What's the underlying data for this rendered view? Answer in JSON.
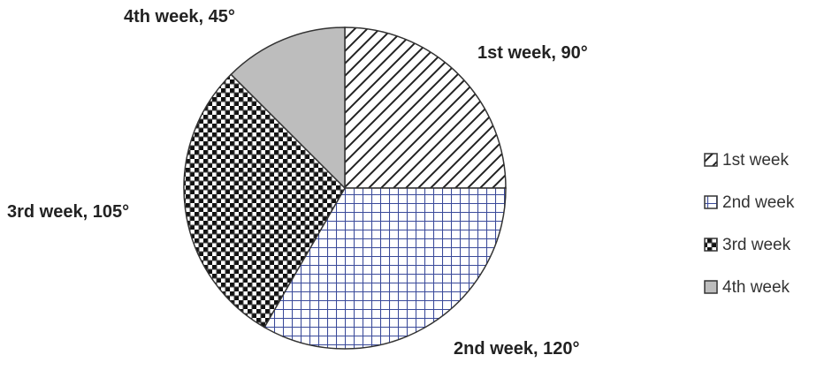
{
  "chart_data": {
    "type": "pie",
    "categories": [
      "1st week",
      "2nd week",
      "3rd week",
      "4th week"
    ],
    "values": [
      90,
      120,
      105,
      45
    ],
    "unit": "°",
    "slice_labels": [
      "1st week, 90°",
      "2nd week, 120°",
      "3rd week, 105°",
      "4th week, 45°"
    ],
    "patterns": [
      "diagonal-hatch",
      "grid",
      "checker",
      "solid-gray"
    ],
    "colors": [
      "#333333",
      "#3a4a9a",
      "#111111",
      "#bdbdbd"
    ],
    "legend": {
      "placement": "right",
      "entries": [
        "1st week",
        "2nd week",
        "3rd week",
        "4th week"
      ]
    },
    "start_angle": "12 o'clock",
    "direction": "clockwise"
  }
}
